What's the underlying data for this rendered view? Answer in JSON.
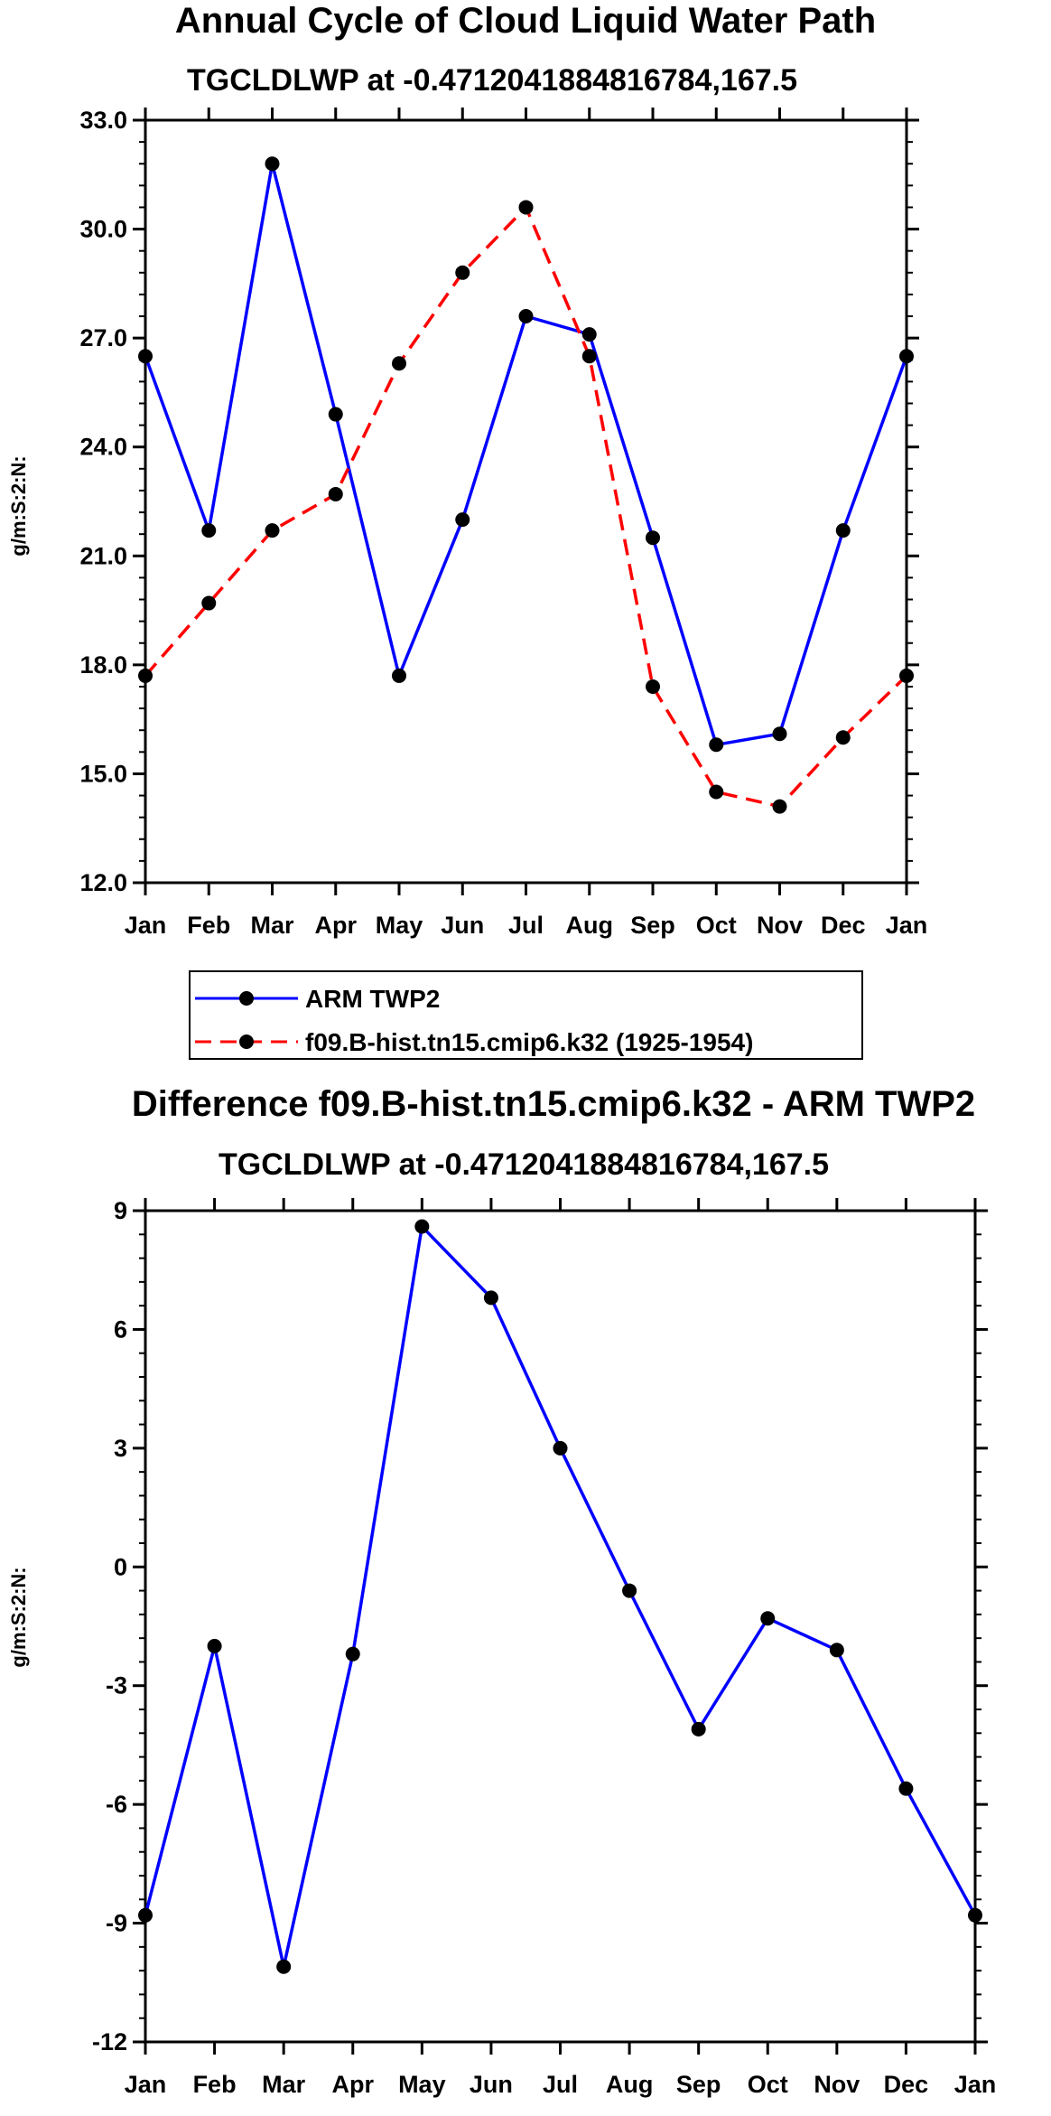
{
  "chart_data": [
    {
      "type": "line",
      "title": "Annual Cycle of Cloud Liquid Water Path",
      "subtitle": "TGCLDLWP at -0.4712041884816784,167.5",
      "ylabel": "g/m:S:2:N:",
      "xlabel": "",
      "categories": [
        "Jan",
        "Feb",
        "Mar",
        "Apr",
        "May",
        "Jun",
        "Jul",
        "Aug",
        "Sep",
        "Oct",
        "Nov",
        "Dec",
        "Jan"
      ],
      "ylim": [
        12.0,
        33.0
      ],
      "yticks": [
        "12.0",
        "15.0",
        "18.0",
        "21.0",
        "24.0",
        "27.0",
        "30.0",
        "33.0"
      ],
      "series": [
        {
          "name": "ARM TWP2",
          "color": "#0000ff",
          "dash": "solid",
          "values": [
            26.5,
            21.7,
            31.8,
            24.9,
            17.7,
            22.0,
            27.6,
            27.1,
            21.5,
            15.8,
            16.1,
            21.7,
            26.5
          ]
        },
        {
          "name": "f09.B-hist.tn15.cmip6.k32 (1925-1954)",
          "color": "#ff0000",
          "dash": "dashed",
          "values": [
            17.7,
            19.7,
            21.7,
            22.7,
            26.3,
            28.8,
            30.6,
            26.5,
            17.4,
            14.5,
            14.1,
            16.0,
            17.7
          ]
        }
      ],
      "legend": "below"
    },
    {
      "type": "line",
      "title": "Difference f09.B-hist.tn15.cmip6.k32 - ARM TWP2",
      "subtitle": "TGCLDLWP at -0.4712041884816784,167.5",
      "ylabel": "g/m:S:2:N:",
      "xlabel": "",
      "categories": [
        "Jan",
        "Feb",
        "Mar",
        "Apr",
        "May",
        "Jun",
        "Jul",
        "Aug",
        "Sep",
        "Oct",
        "Nov",
        "Dec",
        "Jan"
      ],
      "ylim": [
        -12,
        9
      ],
      "yticks": [
        "-12",
        "-9",
        "-6",
        "-3",
        "0",
        "3",
        "6",
        "9"
      ],
      "series": [
        {
          "name": "Difference",
          "color": "#0000ff",
          "dash": "solid",
          "values": [
            -8.8,
            -2.0,
            -10.1,
            -2.2,
            8.6,
            6.8,
            3.0,
            -0.6,
            -4.1,
            -1.3,
            -2.1,
            -5.6,
            -8.8
          ]
        }
      ]
    }
  ]
}
